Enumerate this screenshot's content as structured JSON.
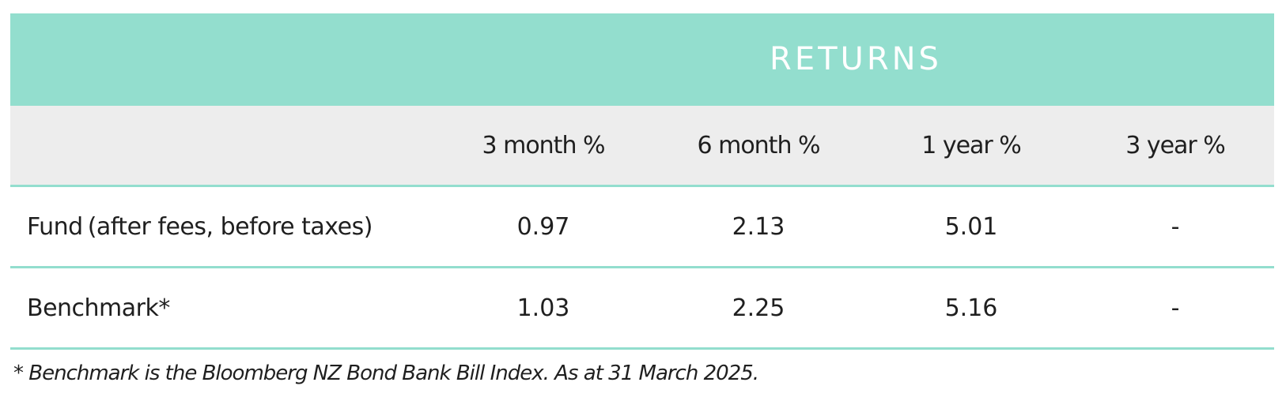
{
  "table": {
    "group_header": "RETURNS",
    "columns": [
      "3 month %",
      "6 month %",
      "1 year %",
      "3 year %"
    ],
    "rows": [
      {
        "label": "Fund",
        "note": "(after fees, before taxes)",
        "values": [
          "0.97",
          "2.13",
          "5.01",
          "-"
        ]
      },
      {
        "label": "Benchmark*",
        "note": "",
        "values": [
          "1.03",
          "2.25",
          "5.16",
          "-"
        ]
      }
    ]
  },
  "footnote": "* Benchmark is the Bloomberg NZ Bond Bank Bill Index. As at 31 March 2025.",
  "colors": {
    "accent": "#93dece",
    "header_bg": "#ededed",
    "text": "#1f1f1f"
  }
}
